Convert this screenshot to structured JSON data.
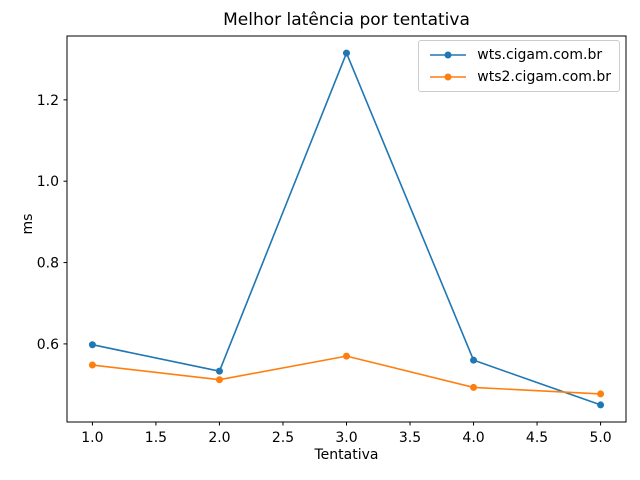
{
  "figure": {
    "background": "#ffffff",
    "text_color": "#000000",
    "spine_color": "#000000"
  },
  "chart_data": {
    "type": "line",
    "title": "Melhor latência por tentativa",
    "xlabel": "Tentativa",
    "ylabel": "ms",
    "x": [
      1,
      2,
      3,
      4,
      5
    ],
    "series": [
      {
        "name": "wts.cigam.com.br",
        "color": "#1f77b4",
        "values": [
          0.598,
          0.533,
          1.315,
          0.56,
          0.45
        ]
      },
      {
        "name": "wts2.cigam.com.br",
        "color": "#ff7f0e",
        "values": [
          0.548,
          0.512,
          0.57,
          0.493,
          0.477
        ]
      }
    ],
    "xticks": [
      1.0,
      1.5,
      2.0,
      2.5,
      3.0,
      3.5,
      4.0,
      4.5,
      5.0
    ],
    "yticks": [
      0.6,
      0.8,
      1.0,
      1.2
    ],
    "xlim": [
      0.8,
      5.2
    ],
    "ylim": [
      0.408,
      1.357
    ],
    "grid": false,
    "legend_position": "upper right",
    "marker": "circle",
    "line_width": 1.6,
    "marker_radius": 3.5
  }
}
